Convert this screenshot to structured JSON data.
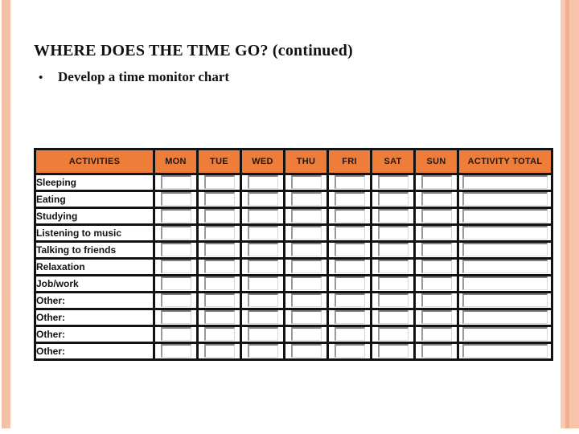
{
  "slide": {
    "title": "WHERE DOES THE TIME GO? (continued)",
    "bullet_glyph": "•",
    "bullet_text": "Develop a time monitor chart"
  },
  "table": {
    "headers": [
      "ACTIVITIES",
      "MON",
      "TUE",
      "WED",
      "THU",
      "FRI",
      "SAT",
      "SUN",
      "ACTIVITY TOTAL"
    ],
    "rows": [
      "Sleeping",
      "Eating",
      "Studying",
      "Listening to music",
      "Talking to friends",
      "Relaxation",
      "Job/work",
      "Other:",
      "Other:",
      "Other:",
      "Other:"
    ],
    "day_columns_count": 7,
    "input_value": ""
  },
  "colors": {
    "header_bg": "#ef7d3a",
    "table_border": "#121212",
    "left_bar": "#f4c0a6",
    "right_bar_light": "#f9c6ac",
    "right_bar_dark": "#efb092",
    "text": "#121212"
  }
}
